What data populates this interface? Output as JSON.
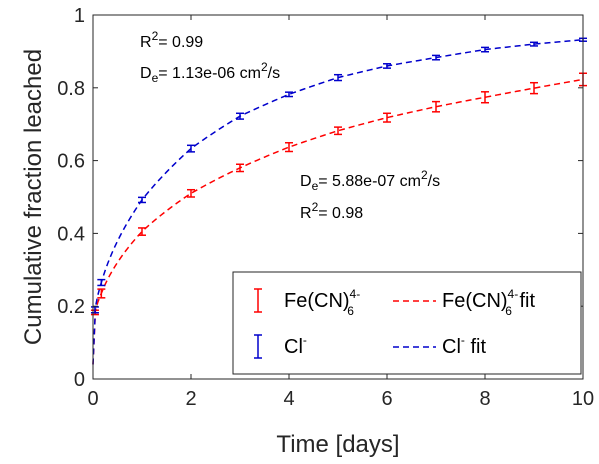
{
  "chart_data": {
    "type": "line",
    "xlabel": "Time [days]",
    "ylabel": "Cumulative fraction leached",
    "xlim": [
      0,
      10
    ],
    "ylim": [
      0,
      1
    ],
    "xticks": [
      "0",
      "2",
      "4",
      "6",
      "8",
      "10"
    ],
    "yticks": [
      "0",
      "0.2",
      "0.4",
      "0.6",
      "0.8",
      "1"
    ],
    "grid": false,
    "legend_position": "lower-right",
    "colors": {
      "fe": "#ff0000",
      "cl": "#0000cc"
    },
    "series": [
      {
        "key": "fe",
        "name_main": "Fe(CN)",
        "name_sub": "6",
        "name_sup": "4-",
        "fit_suffix": " fit",
        "x": [
          0.04,
          0.17,
          1,
          2,
          3,
          4,
          5,
          6,
          7,
          8,
          9,
          10
        ],
        "y": [
          0.183,
          0.235,
          0.405,
          0.51,
          0.58,
          0.637,
          0.682,
          0.718,
          0.748,
          0.774,
          0.799,
          0.823
        ],
        "err": [
          0.006,
          0.012,
          0.01,
          0.01,
          0.01,
          0.012,
          0.01,
          0.012,
          0.014,
          0.015,
          0.015,
          0.017
        ],
        "fit_De": 5.88e-07
      },
      {
        "key": "cl",
        "name_main": "Cl",
        "name_sub": "",
        "name_sup": "-",
        "fit_suffix": " fit",
        "x": [
          0.04,
          0.17,
          1,
          2,
          3,
          4,
          5,
          6,
          7,
          8,
          9,
          10
        ],
        "y": [
          0.19,
          0.265,
          0.492,
          0.633,
          0.722,
          0.782,
          0.828,
          0.86,
          0.883,
          0.905,
          0.92,
          0.932
        ],
        "err": [
          0.008,
          0.008,
          0.007,
          0.009,
          0.008,
          0.006,
          0.008,
          0.006,
          0.006,
          0.006,
          0.005,
          0.004
        ],
        "fit_De": 1.13e-06
      }
    ],
    "annotations": {
      "cl_r2_main": "R",
      "cl_r2_sup": "2",
      "cl_r2_val": "= 0.99",
      "cl_de_main": "D",
      "cl_de_sub": "e",
      "cl_de_val": "= 1.13e-06 cm",
      "cl_de_sup": "2",
      "cl_de_unit": "/s",
      "fe_de_main": "D",
      "fe_de_sub": "e",
      "fe_de_val": "= 5.88e-07 cm",
      "fe_de_sup": "2",
      "fe_de_unit": "/s",
      "fe_r2_main": "R",
      "fe_r2_sup": "2",
      "fe_r2_val": "= 0.98"
    }
  }
}
